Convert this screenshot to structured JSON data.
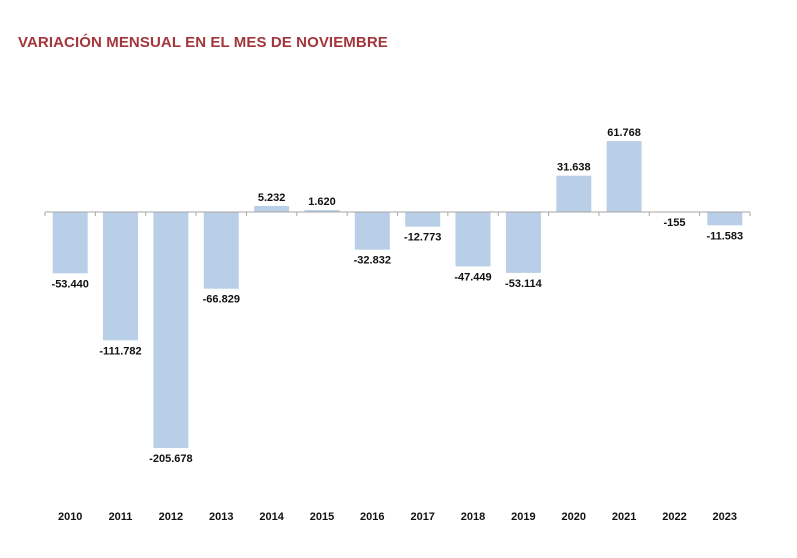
{
  "chart_data": {
    "type": "bar",
    "title": "VARIACIÓN MENSUAL EN EL MES DE NOVIEMBRE",
    "categories": [
      "2010",
      "2011",
      "2012",
      "2013",
      "2014",
      "2015",
      "2016",
      "2017",
      "2018",
      "2019",
      "2020",
      "2021",
      "2022",
      "2023"
    ],
    "values": [
      -53440,
      -111782,
      -205678,
      -66829,
      5232,
      1620,
      -32832,
      -12773,
      -47449,
      -53114,
      31638,
      61768,
      -155,
      -11583
    ],
    "value_labels": [
      "-53.440",
      "-111.782",
      "-205.678",
      "-66.829",
      "5.232",
      "1.620",
      "-32.832",
      "-12.773",
      "-47.449",
      "-53.114",
      "31.638",
      "61.768",
      "-155",
      "-11.583"
    ],
    "xlabel": "",
    "ylabel": "",
    "grid": false,
    "legend": "none",
    "colors": {
      "bar": "#b9cfe8",
      "title": "#a3363b",
      "axis": "#a6a6a6",
      "text": "#111111"
    }
  }
}
